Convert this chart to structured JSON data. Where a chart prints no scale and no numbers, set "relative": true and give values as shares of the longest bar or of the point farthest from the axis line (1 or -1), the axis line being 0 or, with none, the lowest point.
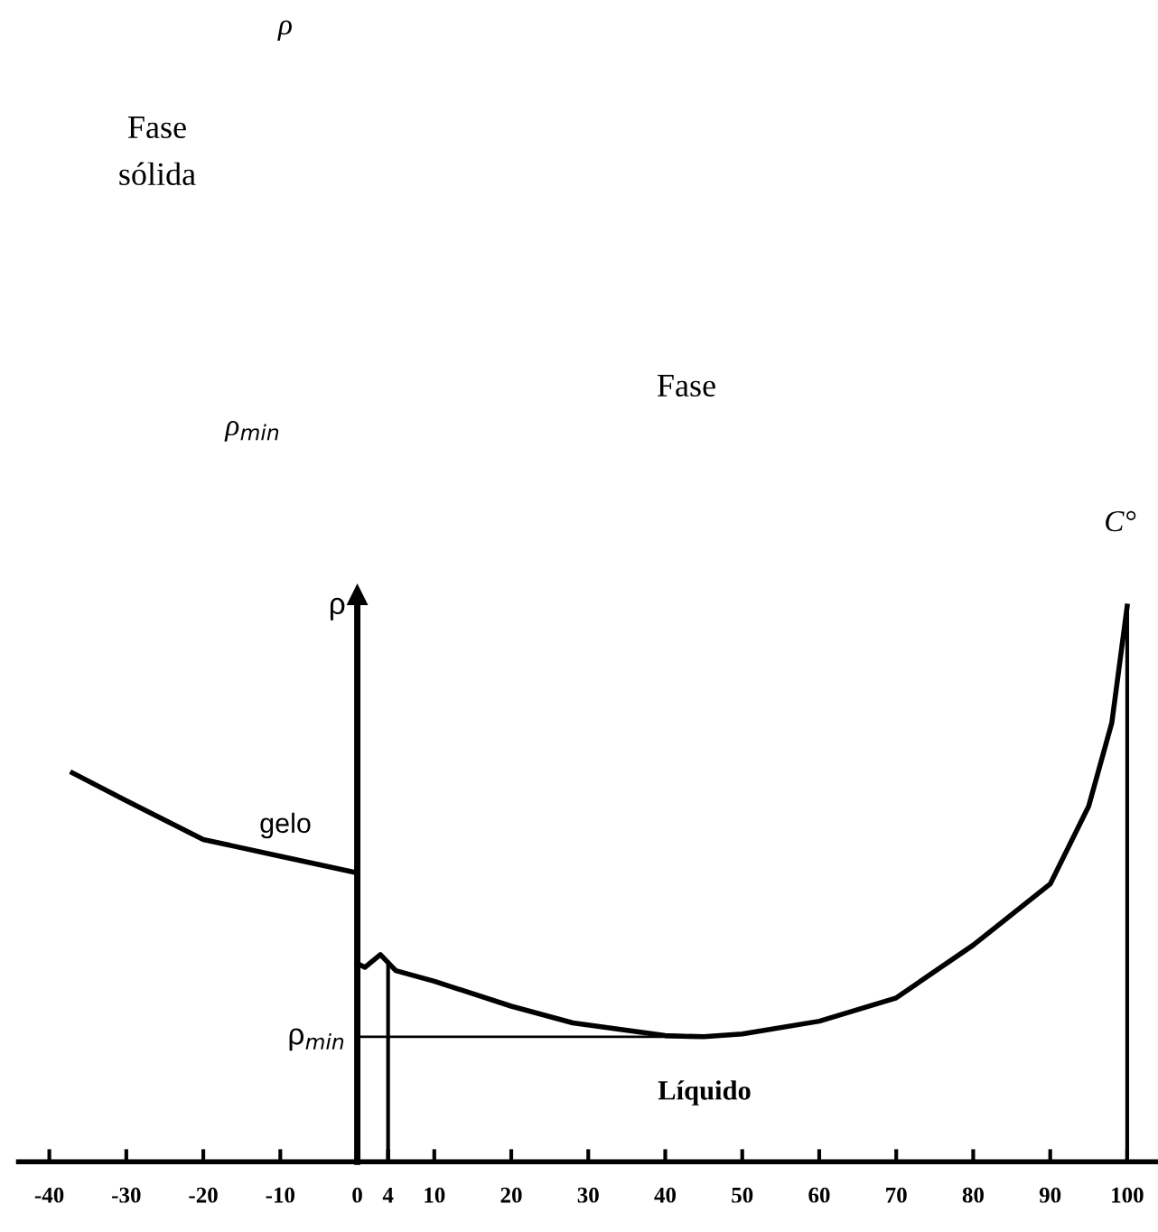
{
  "chart_data": {
    "type": "line",
    "relative": true,
    "ylabel": "ρ",
    "xlim": [
      -44,
      104
    ],
    "xticks": [
      -40,
      -30,
      -20,
      -10,
      0,
      4,
      10,
      20,
      30,
      40,
      50,
      60,
      70,
      80,
      90,
      100
    ],
    "grid": false,
    "marker": "none",
    "line_style": "solid",
    "series": [
      {
        "color": "#000000",
        "x": [
          -37,
          -30,
          -20,
          -10,
          0
        ],
        "values": [
          0.7,
          0.65,
          0.58,
          0.55,
          0.52
        ]
      },
      {
        "color": "#000000",
        "x": [
          0,
          1,
          3,
          5,
          10,
          20,
          28,
          40,
          45,
          50,
          60,
          70,
          80,
          90,
          95,
          98,
          100
        ],
        "values": [
          0.357,
          0.35,
          0.373,
          0.344,
          0.325,
          0.28,
          0.25,
          0.227,
          0.225,
          0.23,
          0.253,
          0.295,
          0.39,
          0.5,
          0.64,
          0.79,
          1.0
        ]
      }
    ],
    "ref_lines": [
      {
        "axis": "y",
        "value": 0.225,
        "label": "ρ$_{min}$",
        "color": "#000000",
        "line_style": "solid"
      },
      {
        "axis": "x",
        "value": 4,
        "color": "#000000",
        "line_style": "solid"
      },
      {
        "axis": "x",
        "value": 100,
        "color": "#000000",
        "line_style": "solid"
      }
    ],
    "annotations": [
      "gelo",
      "Líquido",
      "ρ",
      "Fase",
      "sólida",
      "Fase",
      "ρ$_{min}$",
      "C°"
    ]
  }
}
